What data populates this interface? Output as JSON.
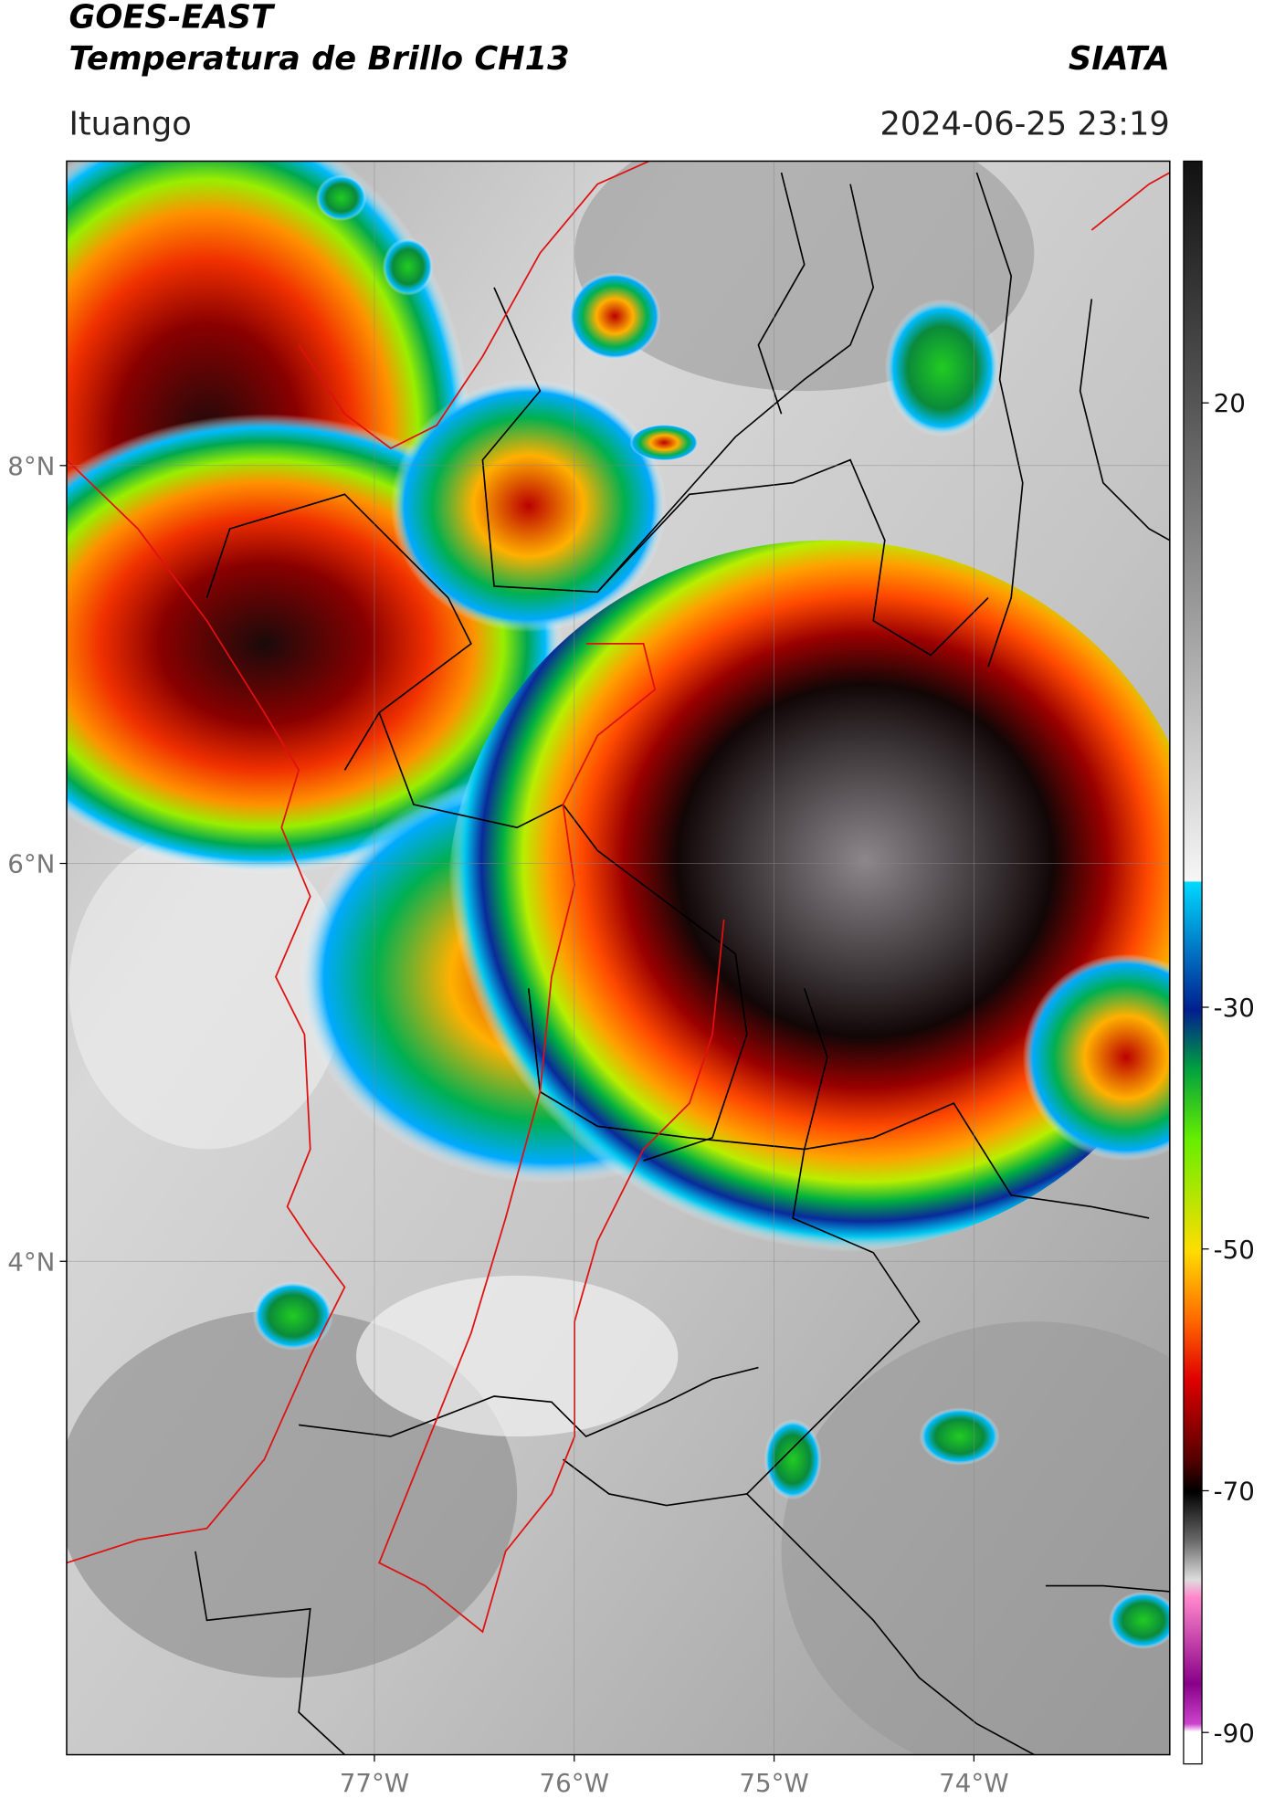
{
  "header": {
    "title": "GOES-EAST",
    "subtitle": "Temperatura de Brillo CH13",
    "source": "SIATA",
    "location": "Ituango",
    "datetime": "2024-06-25 23:19"
  },
  "map": {
    "xlim": [
      -78.54,
      -73.02
    ],
    "ylim": [
      1.52,
      9.53
    ],
    "yticks": [
      {
        "value": 8,
        "label": "8°N"
      },
      {
        "value": 6,
        "label": "6°N"
      },
      {
        "value": 4,
        "label": "4°N"
      }
    ],
    "xticks": [
      {
        "value": -77,
        "label": "77°W"
      },
      {
        "value": -76,
        "label": "76°W"
      },
      {
        "value": -75,
        "label": "75°W"
      },
      {
        "value": -74,
        "label": "74°W"
      }
    ]
  },
  "colorbar": {
    "ylim": [
      -92.6,
      40
    ],
    "yticks": [
      -90,
      -70,
      -50,
      -30,
      20
    ]
  }
}
